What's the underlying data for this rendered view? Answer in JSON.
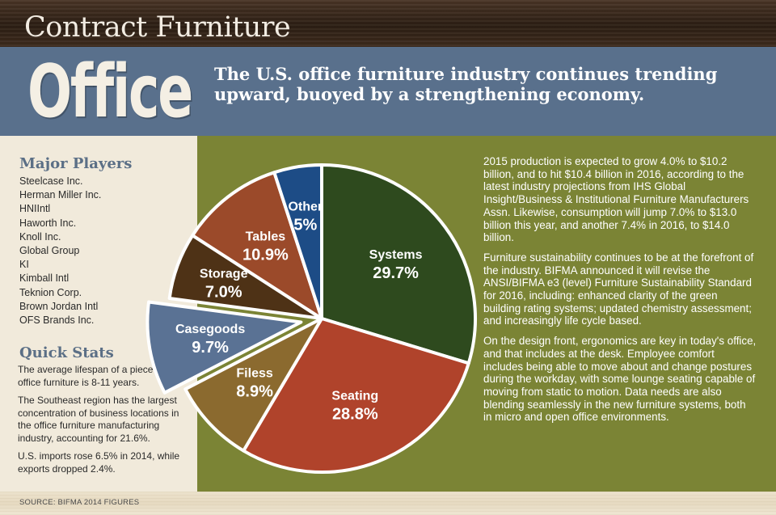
{
  "header": {
    "title": "Contract Furniture"
  },
  "banner": {
    "word": "Office",
    "text": "The U.S. office furniture industry continues trending upward, buoyed by a strengthening economy."
  },
  "sidebar": {
    "players_title": "Major Players",
    "players": [
      "Steelcase Inc.",
      "Herman Miller Inc.",
      "HNIIntl",
      "Haworth Inc.",
      "Knoll Inc.",
      "Global Group",
      "KI",
      "Kimball Intl",
      "Teknion Corp.",
      "Brown Jordan Intl",
      "OFS Brands Inc."
    ],
    "stats_title": "Quick Stats",
    "stats": [
      "The average lifespan of a piece of office furniture is 8-11 years.",
      "The Southeast region has the largest concentration of business locations in the office furniture manufacturing industry, accounting for 21.6%.",
      "U.S. imports rose 6.5% in 2014, while exports dropped 2.4%."
    ]
  },
  "article": {
    "paragraphs": [
      "2015 production is expected to grow 4.0% to $10.2 billion, and to hit $10.4 billion in 2016, according to the latest industry projections from IHS Global Insight/Business & Institutional Furniture Manufacturers Assn. Likewise, consumption will jump 7.0% to $13.0 billion this year, and another 7.4% in 2016, to $14.0 billion.",
      "Furniture sustainability continues to be at the forefront of the industry. BIFMA announced it will revise the ANSI/BIFMA e3 (level) Furniture Sustainability Standard for 2016, including: enhanced clarity of the green building rating systems; updated chemistry assessment; and increasingly life cycle based.",
      "On the design front, ergonomics are key in today's office, and that includes at the desk. Employee comfort includes being able to move about and change postures during the workday, with some lounge seating capable of moving from static to motion. Data needs are also blending seamlessly in the new furniture systems, both in micro and open office environments."
    ]
  },
  "footer": {
    "source": "SOURCE: BIFMA 2014 FIGURES"
  },
  "chart_data": {
    "type": "pie",
    "slices": [
      {
        "label": "Systems",
        "value": 29.7,
        "value_label": "29.7%",
        "color": "#2e4a1e",
        "exploded": false
      },
      {
        "label": "Seating",
        "value": 28.8,
        "value_label": "28.8%",
        "color": "#b0432b",
        "exploded": false
      },
      {
        "label": "Filess",
        "value": 8.9,
        "value_label": "8.9%",
        "color": "#8b6a2f",
        "exploded": false
      },
      {
        "label": "Casegoods",
        "value": 9.7,
        "value_label": "9.7%",
        "color": "#5a7294",
        "exploded": true
      },
      {
        "label": "Storage",
        "value": 7.0,
        "value_label": "7.0%",
        "color": "#4e3216",
        "exploded": false
      },
      {
        "label": "Tables",
        "value": 10.9,
        "value_label": "10.9%",
        "color": "#9b4a2a",
        "exploded": false
      },
      {
        "label": "Other",
        "value": 5.0,
        "value_label": "5%",
        "color": "#1d4c86",
        "exploded": false
      }
    ],
    "start_angle_deg": 0,
    "direction": "clockwise"
  }
}
